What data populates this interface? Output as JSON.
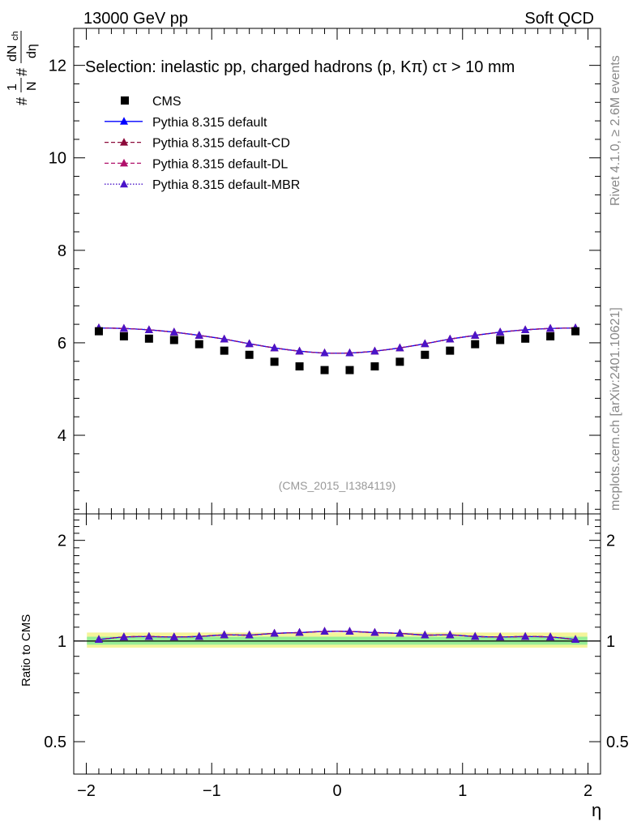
{
  "header": {
    "left": "13000 GeV pp",
    "right": "Soft QCD"
  },
  "selection": "Selection: inelastic pp, charged hadrons (p, Kπ) cτ > 10 mm",
  "side_labels": {
    "rivet": "Rivet 4.1.0, ≥ 2.6M events",
    "mcplots": "mcplots.cern.ch [arXiv:2401.10621]"
  },
  "watermark": "(CMS_2015_I1384119)",
  "y_label": {
    "hash1": "#",
    "hash2": "#",
    "one": "1",
    "N": "N",
    "dN": "dN",
    "ch": "ch",
    "deta": "dη"
  },
  "ratio_ylabel": "Ratio to CMS",
  "x_label": "η",
  "legend": [
    {
      "label": "CMS",
      "marker": "square",
      "color": "#000000",
      "line": "none"
    },
    {
      "label": "Pythia 8.315 default",
      "marker": "triangle",
      "color": "#0000ff",
      "line": "solid"
    },
    {
      "label": "Pythia 8.315 default-CD",
      "marker": "triangle",
      "color": "#8b0a3a",
      "line": "dashed"
    },
    {
      "label": "Pythia 8.315 default-DL",
      "marker": "triangle",
      "color": "#b0106a",
      "line": "dashed"
    },
    {
      "label": "Pythia 8.315 default-MBR",
      "marker": "triangle",
      "color": "#4a14c8",
      "line": "dotted"
    }
  ],
  "chart_data": {
    "type": "line",
    "title": "Selection: inelastic pp, charged hadrons (p, Kπ) cτ > 10 mm",
    "xlabel": "η",
    "ylabel": "(1/N) dN_ch/dη",
    "xlim": [
      -2.1,
      2.1
    ],
    "ylim": [
      2.3,
      12.8
    ],
    "x_ticks": [
      -2,
      -1,
      0,
      1,
      2
    ],
    "y_ticks": [
      4,
      6,
      8,
      10,
      12
    ],
    "x": [
      -1.9,
      -1.7,
      -1.5,
      -1.3,
      -1.1,
      -0.9,
      -0.7,
      -0.5,
      -0.3,
      -0.1,
      0.1,
      0.3,
      0.5,
      0.7,
      0.9,
      1.1,
      1.3,
      1.5,
      1.7,
      1.9
    ],
    "series": [
      {
        "name": "CMS",
        "color": "#000000",
        "values": [
          6.25,
          6.14,
          6.09,
          6.06,
          5.97,
          5.83,
          5.74,
          5.59,
          5.49,
          5.41,
          5.41,
          5.49,
          5.59,
          5.74,
          5.83,
          5.97,
          6.06,
          6.09,
          6.14,
          6.25
        ]
      },
      {
        "name": "Pythia 8.315 default",
        "color": "#0000ff",
        "values": [
          6.32,
          6.31,
          6.28,
          6.23,
          6.16,
          6.08,
          5.98,
          5.89,
          5.82,
          5.78,
          5.78,
          5.82,
          5.89,
          5.98,
          6.08,
          6.16,
          6.23,
          6.28,
          6.31,
          6.32
        ]
      },
      {
        "name": "Pythia 8.315 default-CD",
        "color": "#8b0a3a",
        "values": [
          6.32,
          6.31,
          6.28,
          6.23,
          6.16,
          6.08,
          5.98,
          5.89,
          5.82,
          5.78,
          5.78,
          5.82,
          5.89,
          5.98,
          6.08,
          6.16,
          6.23,
          6.28,
          6.31,
          6.32
        ]
      },
      {
        "name": "Pythia 8.315 default-DL",
        "color": "#b0106a",
        "values": [
          6.32,
          6.31,
          6.28,
          6.23,
          6.16,
          6.08,
          5.98,
          5.89,
          5.82,
          5.78,
          5.78,
          5.82,
          5.89,
          5.98,
          6.08,
          6.16,
          6.23,
          6.28,
          6.31,
          6.32
        ]
      },
      {
        "name": "Pythia 8.315 default-MBR",
        "color": "#4a14c8",
        "values": [
          6.32,
          6.31,
          6.28,
          6.23,
          6.16,
          6.08,
          5.98,
          5.89,
          5.82,
          5.78,
          5.78,
          5.82,
          5.89,
          5.98,
          6.08,
          6.16,
          6.23,
          6.28,
          6.31,
          6.32
        ]
      }
    ],
    "ratio": {
      "ylabel": "Ratio to CMS",
      "ylim": [
        0.4,
        2.4
      ],
      "y_ticks": [
        0.5,
        1,
        2
      ],
      "band_yellow": [
        0.955,
        1.06
      ],
      "band_green": [
        0.975,
        1.03
      ],
      "values": [
        1.01,
        1.028,
        1.031,
        1.028,
        1.032,
        1.043,
        1.042,
        1.054,
        1.06,
        1.068,
        1.068,
        1.06,
        1.054,
        1.042,
        1.043,
        1.032,
        1.028,
        1.031,
        1.028,
        1.01
      ]
    }
  }
}
